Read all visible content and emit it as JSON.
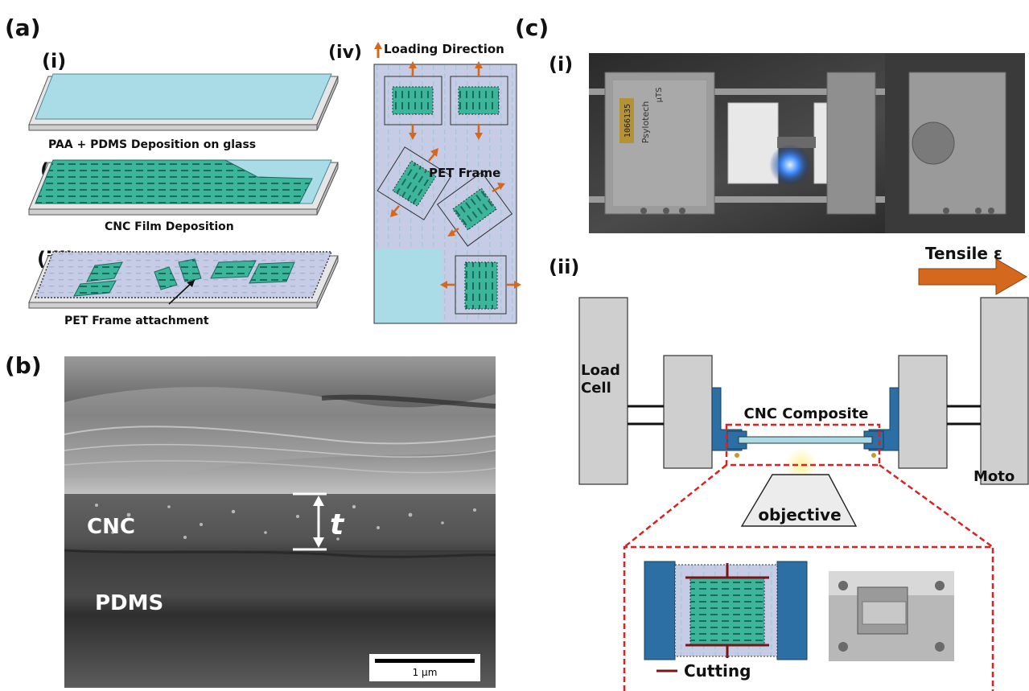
{
  "panel_a": {
    "label": "(a)",
    "i": {
      "label": "(i)",
      "caption": "PAA + PDMS Deposition on glass"
    },
    "ii": {
      "label": "(ii)",
      "caption": "CNC Film Deposition"
    },
    "iii": {
      "label": "(iii)",
      "caption": "PET Frame attachment"
    },
    "iv": {
      "label": "(iv)",
      "loading": "Loading Direction",
      "frame": "PET Frame"
    }
  },
  "panel_b": {
    "label": "(b)",
    "cnc": "CNC",
    "pdms": "PDMS",
    "thickness": "t",
    "scale": "1 µm"
  },
  "panel_c": {
    "label": "(c)",
    "i": {
      "label": "(i)",
      "brand": "Psylotech",
      "serial": "1066135",
      "mark": "µTS"
    },
    "ii": {
      "label": "(ii)",
      "tensile": "Tensile ε",
      "loadcell_1": "Load",
      "loadcell_2": "Cell",
      "composite": "CNC Composite",
      "motor": "Moto",
      "objective": "objective",
      "cutting": "Cutting"
    }
  },
  "colors": {
    "glass": "#a9dce6",
    "cnc_green": "#3db59b",
    "stripe": "#1a6b5c",
    "pet": "#c6cce6",
    "orange": "#d4691e",
    "clamp_blue": "#2c6fa5",
    "grey_block": "#cfcfcf",
    "cut_red": "#7a1515",
    "dash_red": "#e02020"
  }
}
